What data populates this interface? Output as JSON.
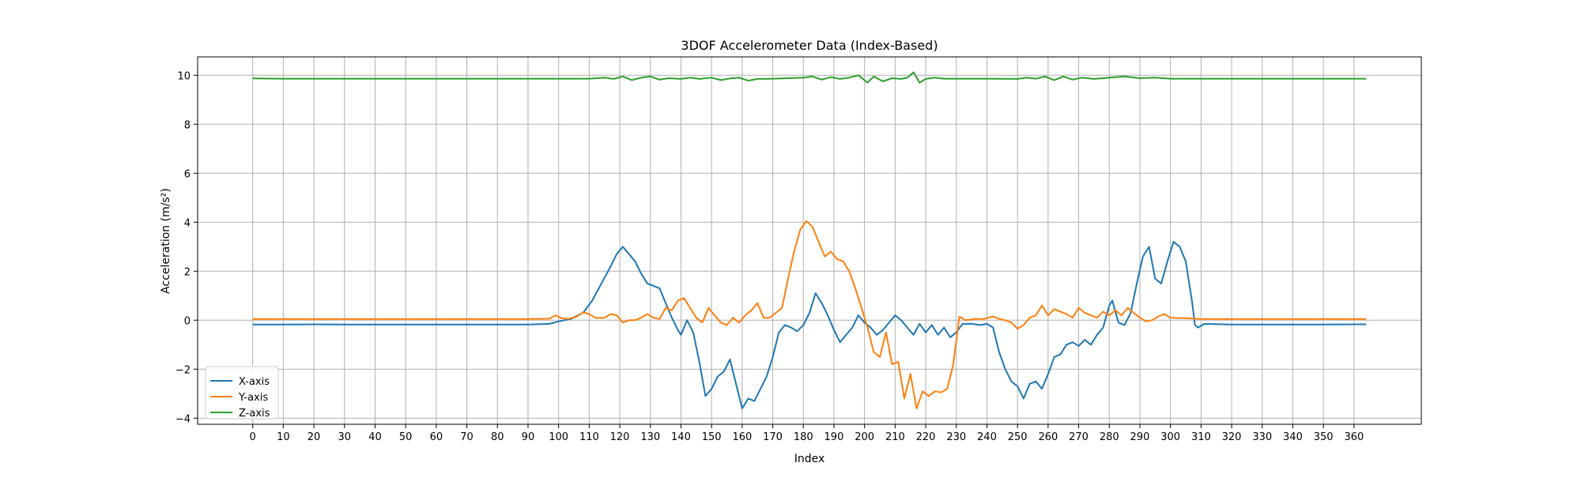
{
  "chart_data": {
    "type": "line",
    "title": "3DOF Accelerometer Data (Index-Based)",
    "xlabel": "Index",
    "ylabel": "Acceleration (m/s²)",
    "xlim": [
      -18,
      382
    ],
    "ylim": [
      -4.25,
      10.75
    ],
    "xticks": [
      0,
      10,
      20,
      30,
      40,
      50,
      60,
      70,
      80,
      90,
      100,
      110,
      120,
      130,
      140,
      150,
      160,
      170,
      180,
      190,
      200,
      210,
      220,
      230,
      240,
      250,
      260,
      270,
      280,
      290,
      300,
      310,
      320,
      330,
      340,
      350,
      360
    ],
    "yticks": [
      -4,
      -2,
      0,
      2,
      4,
      6,
      8,
      10
    ],
    "grid": true,
    "legend_position": "lower-left",
    "series": [
      {
        "name": "X-axis",
        "color": "#1f77b4",
        "points": [
          [
            0,
            -0.18
          ],
          [
            10,
            -0.18
          ],
          [
            20,
            -0.17
          ],
          [
            30,
            -0.18
          ],
          [
            40,
            -0.18
          ],
          [
            50,
            -0.18
          ],
          [
            60,
            -0.18
          ],
          [
            70,
            -0.18
          ],
          [
            80,
            -0.18
          ],
          [
            90,
            -0.18
          ],
          [
            97,
            -0.15
          ],
          [
            100,
            -0.05
          ],
          [
            104,
            0.05
          ],
          [
            108,
            0.3
          ],
          [
            111,
            0.8
          ],
          [
            114,
            1.5
          ],
          [
            117,
            2.2
          ],
          [
            119,
            2.7
          ],
          [
            121,
            3.0
          ],
          [
            123,
            2.7
          ],
          [
            125,
            2.4
          ],
          [
            127,
            1.9
          ],
          [
            129,
            1.5
          ],
          [
            131,
            1.4
          ],
          [
            133,
            1.3
          ],
          [
            135,
            0.7
          ],
          [
            137,
            0.1
          ],
          [
            139,
            -0.4
          ],
          [
            140,
            -0.6
          ],
          [
            142,
            0.0
          ],
          [
            144,
            -0.5
          ],
          [
            146,
            -1.7
          ],
          [
            148,
            -3.1
          ],
          [
            150,
            -2.8
          ],
          [
            152,
            -2.3
          ],
          [
            154,
            -2.1
          ],
          [
            156,
            -1.6
          ],
          [
            158,
            -2.6
          ],
          [
            160,
            -3.6
          ],
          [
            162,
            -3.2
          ],
          [
            164,
            -3.3
          ],
          [
            166,
            -2.8
          ],
          [
            168,
            -2.3
          ],
          [
            170,
            -1.5
          ],
          [
            172,
            -0.5
          ],
          [
            174,
            -0.2
          ],
          [
            176,
            -0.3
          ],
          [
            178,
            -0.45
          ],
          [
            180,
            -0.2
          ],
          [
            182,
            0.3
          ],
          [
            184,
            1.1
          ],
          [
            186,
            0.7
          ],
          [
            188,
            0.2
          ],
          [
            190,
            -0.4
          ],
          [
            192,
            -0.9
          ],
          [
            194,
            -0.6
          ],
          [
            196,
            -0.3
          ],
          [
            198,
            0.2
          ],
          [
            200,
            -0.1
          ],
          [
            202,
            -0.3
          ],
          [
            204,
            -0.6
          ],
          [
            206,
            -0.4
          ],
          [
            208,
            -0.1
          ],
          [
            210,
            0.2
          ],
          [
            212,
            0.0
          ],
          [
            214,
            -0.3
          ],
          [
            216,
            -0.6
          ],
          [
            218,
            -0.15
          ],
          [
            220,
            -0.5
          ],
          [
            222,
            -0.2
          ],
          [
            224,
            -0.6
          ],
          [
            226,
            -0.3
          ],
          [
            228,
            -0.7
          ],
          [
            230,
            -0.5
          ],
          [
            232,
            -0.15
          ],
          [
            235,
            -0.15
          ],
          [
            238,
            -0.2
          ],
          [
            240,
            -0.15
          ],
          [
            242,
            -0.3
          ],
          [
            244,
            -1.3
          ],
          [
            246,
            -2.0
          ],
          [
            248,
            -2.5
          ],
          [
            250,
            -2.7
          ],
          [
            252,
            -3.2
          ],
          [
            254,
            -2.6
          ],
          [
            256,
            -2.5
          ],
          [
            258,
            -2.8
          ],
          [
            260,
            -2.2
          ],
          [
            262,
            -1.5
          ],
          [
            264,
            -1.4
          ],
          [
            266,
            -1.0
          ],
          [
            268,
            -0.9
          ],
          [
            270,
            -1.05
          ],
          [
            272,
            -0.8
          ],
          [
            274,
            -1.0
          ],
          [
            276,
            -0.6
          ],
          [
            278,
            -0.3
          ],
          [
            280,
            0.6
          ],
          [
            281,
            0.8
          ],
          [
            283,
            -0.1
          ],
          [
            285,
            -0.2
          ],
          [
            287,
            0.3
          ],
          [
            289,
            1.5
          ],
          [
            291,
            2.6
          ],
          [
            293,
            3.0
          ],
          [
            295,
            1.7
          ],
          [
            297,
            1.5
          ],
          [
            299,
            2.4
          ],
          [
            301,
            3.2
          ],
          [
            303,
            3.0
          ],
          [
            305,
            2.4
          ],
          [
            307,
            0.8
          ],
          [
            308,
            -0.2
          ],
          [
            309,
            -0.3
          ],
          [
            311,
            -0.15
          ],
          [
            320,
            -0.18
          ],
          [
            330,
            -0.18
          ],
          [
            340,
            -0.18
          ],
          [
            350,
            -0.18
          ],
          [
            360,
            -0.17
          ],
          [
            364,
            -0.17
          ]
        ]
      },
      {
        "name": "Y-axis",
        "color": "#ff7f0e",
        "points": [
          [
            0,
            0.05
          ],
          [
            10,
            0.05
          ],
          [
            20,
            0.05
          ],
          [
            30,
            0.05
          ],
          [
            40,
            0.05
          ],
          [
            50,
            0.05
          ],
          [
            60,
            0.05
          ],
          [
            70,
            0.05
          ],
          [
            80,
            0.05
          ],
          [
            90,
            0.05
          ],
          [
            97,
            0.06
          ],
          [
            99,
            0.2
          ],
          [
            101,
            0.08
          ],
          [
            103,
            0.05
          ],
          [
            106,
            0.15
          ],
          [
            108,
            0.32
          ],
          [
            110,
            0.25
          ],
          [
            112,
            0.1
          ],
          [
            115,
            0.1
          ],
          [
            117,
            0.25
          ],
          [
            119,
            0.2
          ],
          [
            121,
            -0.1
          ],
          [
            123,
            0.0
          ],
          [
            125,
            0.0
          ],
          [
            127,
            0.1
          ],
          [
            129,
            0.25
          ],
          [
            131,
            0.1
          ],
          [
            133,
            0.05
          ],
          [
            135,
            0.5
          ],
          [
            137,
            0.4
          ],
          [
            139,
            0.8
          ],
          [
            141,
            0.9
          ],
          [
            143,
            0.5
          ],
          [
            145,
            0.1
          ],
          [
            147,
            -0.1
          ],
          [
            149,
            0.5
          ],
          [
            151,
            0.2
          ],
          [
            153,
            -0.1
          ],
          [
            155,
            -0.2
          ],
          [
            157,
            0.1
          ],
          [
            159,
            -0.1
          ],
          [
            161,
            0.2
          ],
          [
            163,
            0.4
          ],
          [
            165,
            0.7
          ],
          [
            167,
            0.1
          ],
          [
            169,
            0.1
          ],
          [
            171,
            0.3
          ],
          [
            173,
            0.5
          ],
          [
            175,
            1.7
          ],
          [
            177,
            2.8
          ],
          [
            179,
            3.7
          ],
          [
            181,
            4.05
          ],
          [
            183,
            3.8
          ],
          [
            185,
            3.2
          ],
          [
            187,
            2.6
          ],
          [
            189,
            2.8
          ],
          [
            191,
            2.5
          ],
          [
            193,
            2.4
          ],
          [
            195,
            2.0
          ],
          [
            197,
            1.3
          ],
          [
            199,
            0.5
          ],
          [
            201,
            -0.3
          ],
          [
            203,
            -1.3
          ],
          [
            205,
            -1.5
          ],
          [
            207,
            -0.5
          ],
          [
            209,
            -1.8
          ],
          [
            211,
            -1.7
          ],
          [
            213,
            -3.2
          ],
          [
            215,
            -2.2
          ],
          [
            217,
            -3.6
          ],
          [
            219,
            -2.9
          ],
          [
            221,
            -3.1
          ],
          [
            223,
            -2.9
          ],
          [
            225,
            -2.95
          ],
          [
            227,
            -2.8
          ],
          [
            229,
            -1.8
          ],
          [
            231,
            0.15
          ],
          [
            233,
            0.0
          ],
          [
            236,
            0.05
          ],
          [
            239,
            0.05
          ],
          [
            242,
            0.15
          ],
          [
            244,
            0.05
          ],
          [
            246,
            0.0
          ],
          [
            248,
            -0.1
          ],
          [
            250,
            -0.35
          ],
          [
            252,
            -0.2
          ],
          [
            254,
            0.1
          ],
          [
            256,
            0.2
          ],
          [
            258,
            0.6
          ],
          [
            260,
            0.2
          ],
          [
            262,
            0.45
          ],
          [
            264,
            0.35
          ],
          [
            266,
            0.25
          ],
          [
            268,
            0.1
          ],
          [
            270,
            0.5
          ],
          [
            272,
            0.3
          ],
          [
            274,
            0.2
          ],
          [
            276,
            0.1
          ],
          [
            278,
            0.35
          ],
          [
            280,
            0.2
          ],
          [
            282,
            0.4
          ],
          [
            284,
            0.2
          ],
          [
            286,
            0.5
          ],
          [
            288,
            0.3
          ],
          [
            290,
            0.1
          ],
          [
            292,
            -0.05
          ],
          [
            294,
            0.0
          ],
          [
            296,
            0.15
          ],
          [
            298,
            0.25
          ],
          [
            300,
            0.1
          ],
          [
            305,
            0.08
          ],
          [
            310,
            0.05
          ],
          [
            320,
            0.05
          ],
          [
            330,
            0.05
          ],
          [
            340,
            0.05
          ],
          [
            350,
            0.05
          ],
          [
            360,
            0.05
          ],
          [
            364,
            0.05
          ]
        ]
      },
      {
        "name": "Z-axis",
        "color": "#2ca02c",
        "points": [
          [
            0,
            9.87
          ],
          [
            10,
            9.86
          ],
          [
            20,
            9.86
          ],
          [
            30,
            9.86
          ],
          [
            40,
            9.86
          ],
          [
            50,
            9.86
          ],
          [
            60,
            9.86
          ],
          [
            70,
            9.86
          ],
          [
            80,
            9.86
          ],
          [
            90,
            9.86
          ],
          [
            100,
            9.86
          ],
          [
            110,
            9.86
          ],
          [
            115,
            9.9
          ],
          [
            118,
            9.85
          ],
          [
            121,
            9.95
          ],
          [
            124,
            9.8
          ],
          [
            127,
            9.9
          ],
          [
            130,
            9.95
          ],
          [
            133,
            9.82
          ],
          [
            136,
            9.88
          ],
          [
            140,
            9.85
          ],
          [
            143,
            9.9
          ],
          [
            146,
            9.85
          ],
          [
            150,
            9.9
          ],
          [
            153,
            9.8
          ],
          [
            156,
            9.87
          ],
          [
            159,
            9.9
          ],
          [
            162,
            9.78
          ],
          [
            165,
            9.85
          ],
          [
            170,
            9.86
          ],
          [
            175,
            9.88
          ],
          [
            180,
            9.9
          ],
          [
            183,
            9.95
          ],
          [
            186,
            9.82
          ],
          [
            189,
            9.92
          ],
          [
            192,
            9.85
          ],
          [
            195,
            9.9
          ],
          [
            198,
            10.0
          ],
          [
            201,
            9.7
          ],
          [
            203,
            9.95
          ],
          [
            206,
            9.75
          ],
          [
            209,
            9.88
          ],
          [
            212,
            9.85
          ],
          [
            214,
            9.9
          ],
          [
            216,
            10.12
          ],
          [
            218,
            9.7
          ],
          [
            220,
            9.85
          ],
          [
            223,
            9.9
          ],
          [
            226,
            9.86
          ],
          [
            230,
            9.86
          ],
          [
            240,
            9.86
          ],
          [
            250,
            9.85
          ],
          [
            253,
            9.9
          ],
          [
            256,
            9.86
          ],
          [
            259,
            9.95
          ],
          [
            262,
            9.8
          ],
          [
            265,
            9.95
          ],
          [
            268,
            9.82
          ],
          [
            271,
            9.9
          ],
          [
            275,
            9.85
          ],
          [
            280,
            9.9
          ],
          [
            285,
            9.95
          ],
          [
            290,
            9.88
          ],
          [
            295,
            9.9
          ],
          [
            300,
            9.86
          ],
          [
            310,
            9.86
          ],
          [
            320,
            9.86
          ],
          [
            330,
            9.86
          ],
          [
            340,
            9.86
          ],
          [
            350,
            9.86
          ],
          [
            360,
            9.86
          ],
          [
            364,
            9.86
          ]
        ]
      }
    ]
  }
}
